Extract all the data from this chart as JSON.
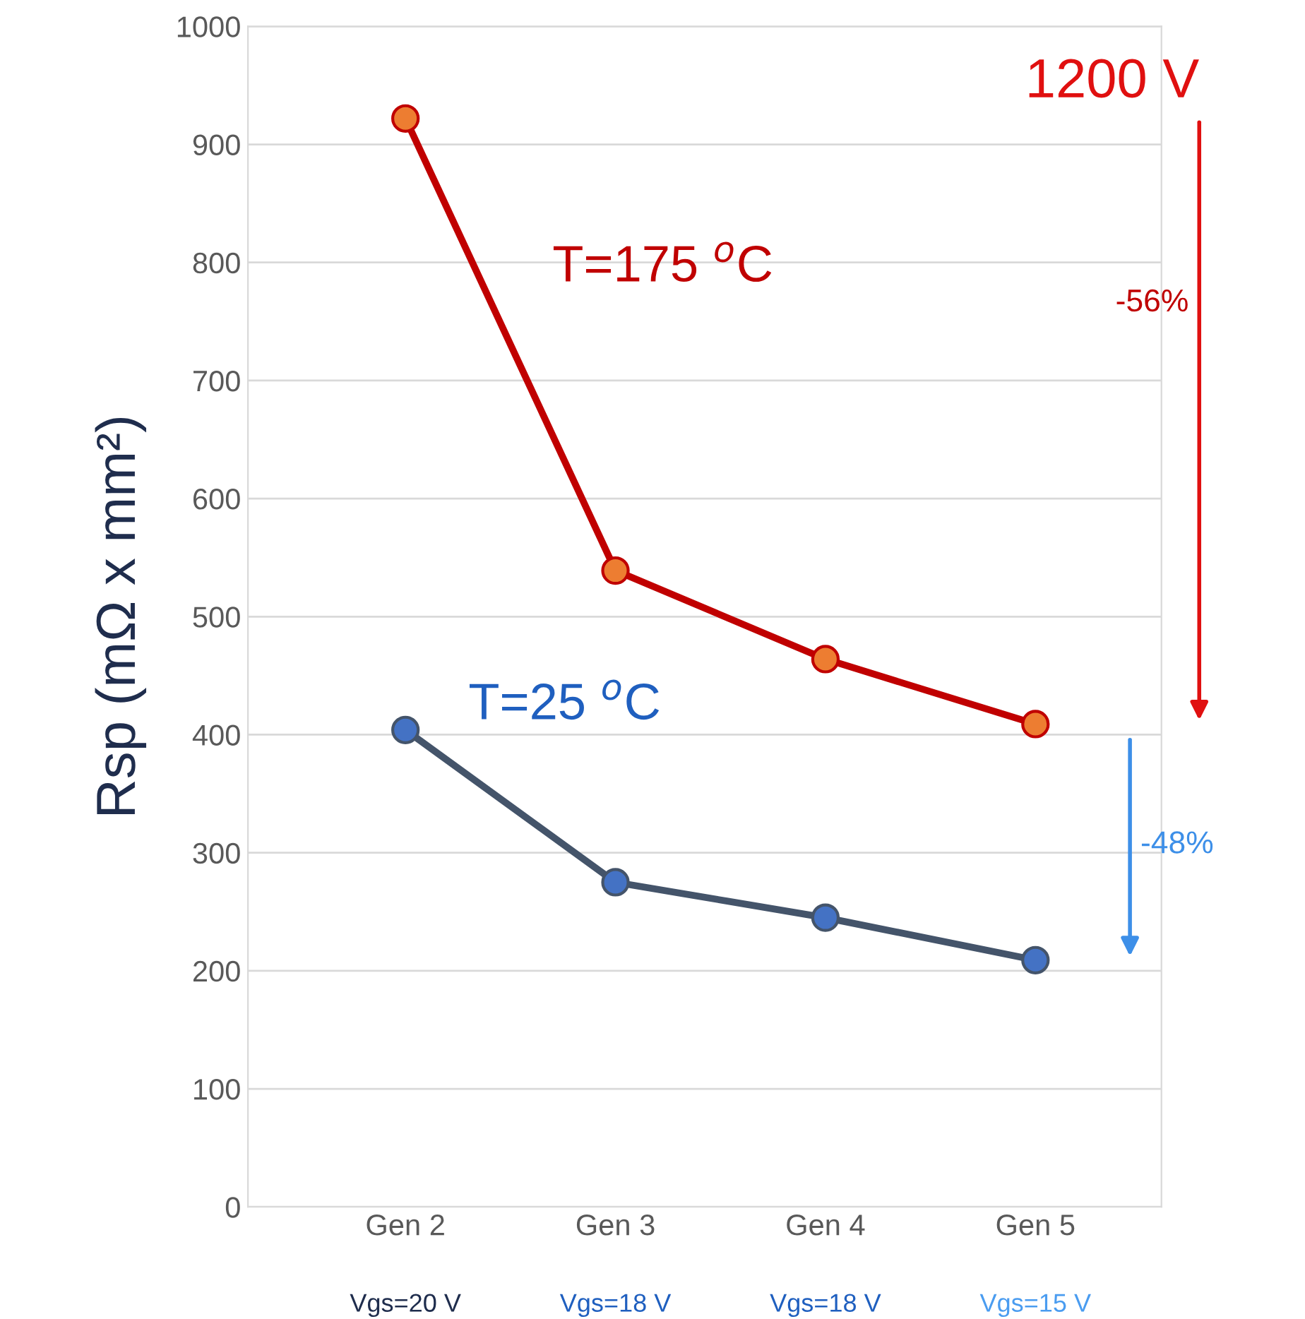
{
  "chart_data": {
    "type": "line",
    "ylabel": "Rsp (mΩ x mm²)",
    "categories": [
      "Gen 2",
      "Gen 3",
      "Gen 4",
      "Gen 5"
    ],
    "series": [
      {
        "name": "T=175 $^{o}$C",
        "color": "#c00000",
        "values": [
          922,
          539,
          464,
          409
        ]
      },
      {
        "name": "T=25 $^{o}$C",
        "color": "#44546a",
        "values": [
          404,
          275,
          245,
          209
        ]
      }
    ],
    "ylim": [
      0,
      1000
    ],
    "yticks": [
      0,
      100,
      200,
      300,
      400,
      500,
      600,
      700,
      800,
      900,
      1000
    ],
    "grid": "y",
    "marker": "circle",
    "line_style": "solid",
    "annotations": [
      "Vgs=20 V",
      "Vgs=18 V",
      "Vgs=18 V",
      "Vgs=15 V",
      "1200 V",
      "-56%",
      "-48%"
    ]
  }
}
